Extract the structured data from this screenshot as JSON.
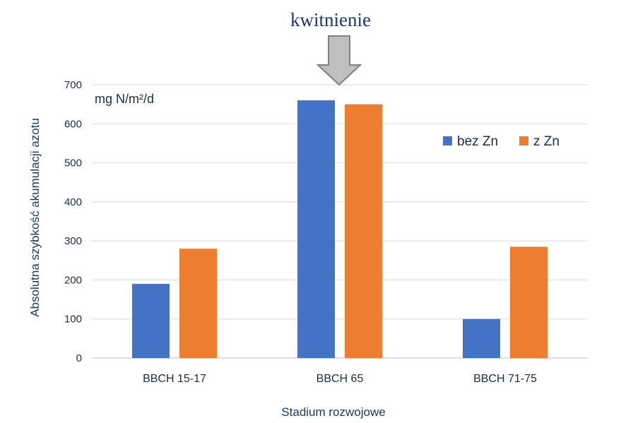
{
  "chart_data": {
    "type": "bar",
    "categories": [
      "BBCH 15-17",
      "BBCH 65",
      "BBCH 71-75"
    ],
    "series": [
      {
        "name": "bez Zn",
        "values": [
          190,
          660,
          100
        ],
        "color": "#4472c4"
      },
      {
        "name": "z Zn",
        "values": [
          280,
          650,
          285
        ],
        "color": "#ed7d31"
      }
    ],
    "xlabel": "Stadium rozwojowe",
    "ylabel": "Absolutna szybkość akumulacji azotu",
    "unit_label": "mg N/m²/d",
    "ylim": [
      0,
      700
    ],
    "yticks": [
      0,
      100,
      200,
      300,
      400,
      500,
      600,
      700
    ],
    "grid": true,
    "legend_position": "right",
    "annotation": {
      "text": "kwitnienie",
      "category": "BBCH 65",
      "arrow": "down",
      "arrow_color": "#bfbfbf"
    }
  }
}
